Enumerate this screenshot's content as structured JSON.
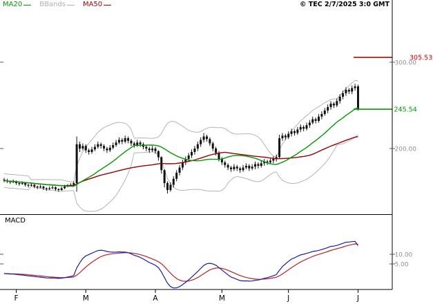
{
  "meta": {
    "copyright": "© TEC 2/7/2025 3:0 GMT"
  },
  "legend": {
    "items": [
      {
        "label": "MA20",
        "color": "#009900"
      },
      {
        "label": "BBands",
        "color": "#b0b0b0"
      },
      {
        "label": "MA50",
        "color": "#990000"
      }
    ]
  },
  "macd_label": "MACD",
  "chart_data": {
    "type": "candlestick",
    "x_axis": {
      "labels": [
        "F",
        "M",
        "A",
        "M",
        "J",
        "J"
      ],
      "tick_indices": [
        4,
        27,
        50,
        72,
        94,
        117
      ]
    },
    "price_panel": {
      "axis_labels": [
        {
          "value": 300,
          "label": "300.00"
        },
        {
          "value": 200,
          "label": "200.00"
        }
      ],
      "hlines": [
        {
          "value": 305.53,
          "label": "305.53",
          "color": "#cc0000"
        },
        {
          "value": 245.54,
          "label": "245.54",
          "color": "#009900"
        }
      ],
      "ma20_window": 20,
      "ma50_window": 50,
      "bb_window": 20,
      "bb_sigma": 2,
      "colors": {
        "ma20": "#009900",
        "ma50": "#990000",
        "bbands": "#b4b4b4",
        "candle": "#111111"
      },
      "candles": [
        [
          164,
          166,
          161,
          163
        ],
        [
          163,
          165,
          160,
          162
        ],
        [
          162,
          163,
          159,
          161
        ],
        [
          161,
          164,
          160,
          162
        ],
        [
          162,
          163,
          158,
          160
        ],
        [
          160,
          161,
          157,
          159
        ],
        [
          159,
          162,
          158,
          160
        ],
        [
          160,
          161,
          156,
          158
        ],
        [
          158,
          159,
          155,
          157
        ],
        [
          157,
          160,
          156,
          158
        ],
        [
          158,
          159,
          154,
          156
        ],
        [
          156,
          157,
          153,
          155
        ],
        [
          155,
          158,
          154,
          156
        ],
        [
          156,
          157,
          152,
          154
        ],
        [
          154,
          155,
          151,
          153
        ],
        [
          153,
          156,
          152,
          154
        ],
        [
          154,
          157,
          153,
          155
        ],
        [
          155,
          156,
          151,
          153
        ],
        [
          153,
          154,
          150,
          152
        ],
        [
          152,
          156,
          151,
          154
        ],
        [
          154,
          158,
          153,
          156
        ],
        [
          156,
          159,
          155,
          157
        ],
        [
          157,
          160,
          156,
          158
        ],
        [
          158,
          162,
          157,
          160
        ],
        [
          160,
          214,
          150,
          205
        ],
        [
          205,
          208,
          196,
          200
        ],
        [
          200,
          206,
          198,
          203
        ],
        [
          203,
          205,
          195,
          198
        ],
        [
          198,
          200,
          193,
          196
        ],
        [
          196,
          202,
          194,
          199
        ],
        [
          199,
          205,
          197,
          202
        ],
        [
          202,
          208,
          200,
          205
        ],
        [
          205,
          207,
          200,
          203
        ],
        [
          203,
          205,
          197,
          200
        ],
        [
          200,
          202,
          195,
          198
        ],
        [
          198,
          204,
          196,
          201
        ],
        [
          201,
          207,
          199,
          204
        ],
        [
          204,
          210,
          202,
          207
        ],
        [
          207,
          213,
          205,
          210
        ],
        [
          210,
          212,
          205,
          208
        ],
        [
          208,
          215,
          206,
          212
        ],
        [
          212,
          214,
          206,
          209
        ],
        [
          209,
          211,
          203,
          206
        ],
        [
          206,
          208,
          201,
          204
        ],
        [
          204,
          210,
          202,
          207
        ],
        [
          207,
          209,
          202,
          205
        ],
        [
          205,
          207,
          199,
          202
        ],
        [
          202,
          204,
          197,
          200
        ],
        [
          200,
          202,
          195,
          198
        ],
        [
          198,
          203,
          196,
          200
        ],
        [
          200,
          202,
          194,
          197
        ],
        [
          197,
          198,
          186,
          190
        ],
        [
          190,
          191,
          171,
          175
        ],
        [
          175,
          176,
          155,
          160
        ],
        [
          160,
          162,
          148,
          152
        ],
        [
          152,
          161,
          150,
          158
        ],
        [
          158,
          168,
          155,
          165
        ],
        [
          165,
          175,
          162,
          172
        ],
        [
          172,
          181,
          169,
          178
        ],
        [
          178,
          187,
          175,
          184
        ],
        [
          184,
          191,
          181,
          188
        ],
        [
          188,
          195,
          185,
          192
        ],
        [
          192,
          199,
          189,
          196
        ],
        [
          196,
          203,
          193,
          200
        ],
        [
          200,
          208,
          197,
          205
        ],
        [
          205,
          213,
          202,
          210
        ],
        [
          210,
          218,
          207,
          214
        ],
        [
          214,
          216,
          208,
          211
        ],
        [
          211,
          213,
          203,
          206
        ],
        [
          206,
          208,
          197,
          200
        ],
        [
          200,
          202,
          192,
          195
        ],
        [
          195,
          197,
          185,
          188
        ],
        [
          188,
          190,
          181,
          184
        ],
        [
          184,
          186,
          178,
          181
        ],
        [
          181,
          183,
          175,
          178
        ],
        [
          178,
          180,
          173,
          176
        ],
        [
          176,
          182,
          174,
          179
        ],
        [
          179,
          181,
          174,
          177
        ],
        [
          177,
          179,
          172,
          175
        ],
        [
          175,
          181,
          173,
          178
        ],
        [
          178,
          183,
          176,
          180
        ],
        [
          180,
          182,
          174,
          177
        ],
        [
          177,
          182,
          175,
          179
        ],
        [
          179,
          185,
          176,
          182
        ],
        [
          182,
          184,
          177,
          180
        ],
        [
          180,
          186,
          178,
          183
        ],
        [
          183,
          188,
          180,
          185
        ],
        [
          185,
          187,
          181,
          184
        ],
        [
          184,
          189,
          182,
          186
        ],
        [
          186,
          191,
          183,
          188
        ],
        [
          188,
          193,
          185,
          190
        ],
        [
          190,
          216,
          188,
          212
        ],
        [
          212,
          218,
          209,
          215
        ],
        [
          215,
          217,
          210,
          213
        ],
        [
          213,
          220,
          211,
          217
        ],
        [
          217,
          223,
          214,
          220
        ],
        [
          220,
          222,
          215,
          218
        ],
        [
          218,
          225,
          216,
          222
        ],
        [
          222,
          228,
          219,
          225
        ],
        [
          225,
          227,
          220,
          223
        ],
        [
          223,
          230,
          221,
          227
        ],
        [
          227,
          233,
          224,
          230
        ],
        [
          230,
          237,
          228,
          234
        ],
        [
          234,
          236,
          229,
          232
        ],
        [
          232,
          240,
          230,
          237
        ],
        [
          237,
          243,
          234,
          240
        ],
        [
          240,
          247,
          238,
          244
        ],
        [
          244,
          251,
          241,
          248
        ],
        [
          248,
          255,
          245,
          252
        ],
        [
          252,
          254,
          247,
          250
        ],
        [
          250,
          258,
          248,
          255
        ],
        [
          255,
          263,
          252,
          260
        ],
        [
          260,
          267,
          257,
          264
        ],
        [
          264,
          271,
          261,
          268
        ],
        [
          268,
          270,
          263,
          266
        ],
        [
          266,
          273,
          263,
          270
        ],
        [
          270,
          275,
          267,
          272
        ],
        [
          272,
          274,
          244,
          245.54
        ]
      ]
    },
    "macd_panel": {
      "fast": 12,
      "slow": 26,
      "signal_window": 9,
      "axis_labels": [
        {
          "value": 10,
          "label": "10.00"
        },
        {
          "value": 5,
          "label": "5.00"
        }
      ],
      "colors": {
        "macd": "#1a1aae",
        "signal": "#bb2222"
      }
    }
  }
}
